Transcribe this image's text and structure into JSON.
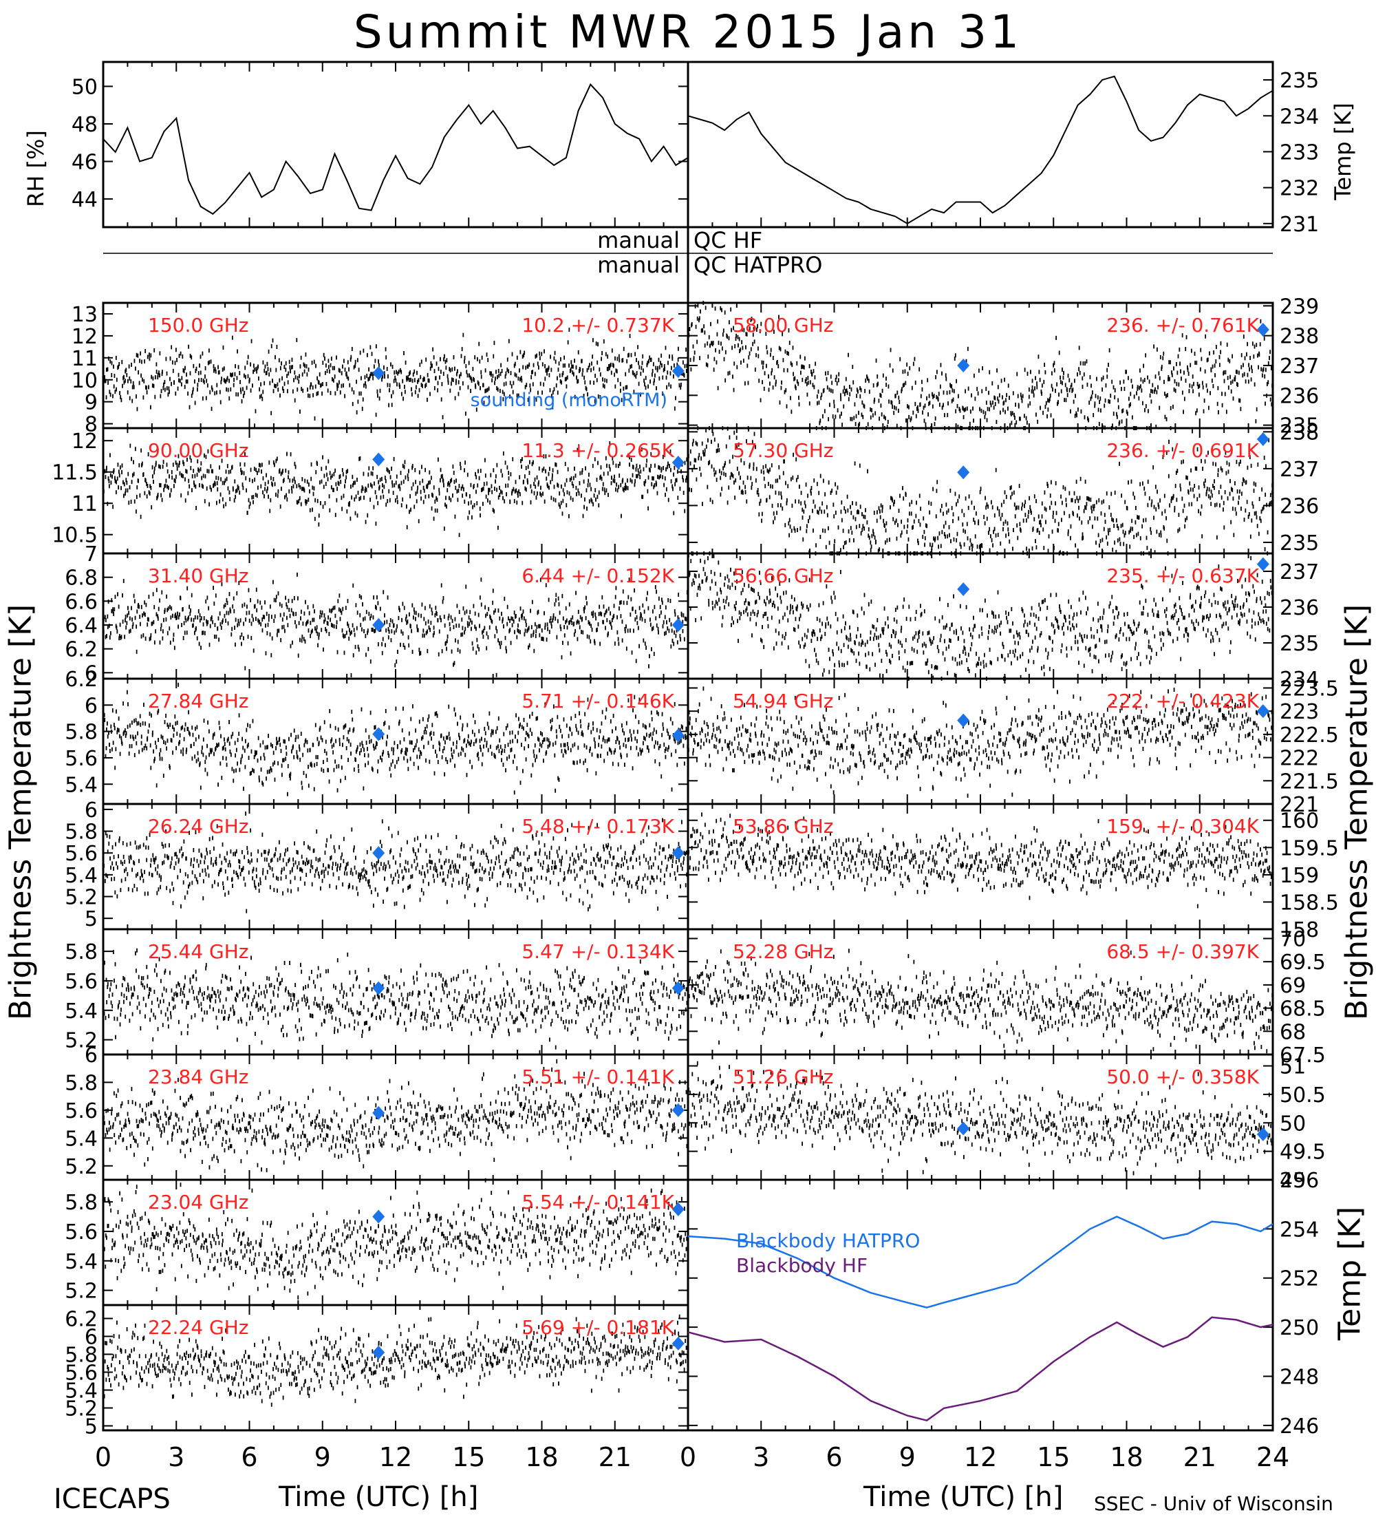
{
  "title": "Summit MWR 2015 Jan 31",
  "footer": {
    "left": "ICECAPS",
    "right": "SSEC - Univ of Wisconsin"
  },
  "colors": {
    "trace": "#000000",
    "label": "#ff2020",
    "marker": "#1a73e8",
    "hatpro": "#1a73e8",
    "hf": "#6a1b7a"
  },
  "axes": {
    "x_label": "Time (UTC) [h]",
    "x_ticks": [
      0,
      3,
      6,
      9,
      12,
      15,
      18,
      21,
      24
    ],
    "x_ticks_left": [
      0,
      3,
      6,
      9,
      12,
      15,
      18,
      21
    ],
    "y_label_left": "Brightness Temperature [K]",
    "y_label_right": "Brightness Temperature [K]",
    "rh_label": "RH [%]",
    "temp_label": "Temp [K]",
    "bb_temp_label": "Temp [K]"
  },
  "qc": {
    "hf": "manual QC HF",
    "hatpro": "manual QC HATPRO"
  },
  "chart_data": [
    {
      "type": "line",
      "id": "rh",
      "ylabel": "RH [%]",
      "ylim": [
        42.5,
        51.3
      ],
      "yticks": [
        44,
        46,
        48,
        50
      ],
      "x": [
        0,
        0.5,
        1,
        1.5,
        2,
        2.5,
        3,
        3.5,
        4,
        4.5,
        5,
        5.5,
        6,
        6.5,
        7,
        7.5,
        8,
        8.5,
        9,
        9.5,
        10,
        10.5,
        11,
        11.5,
        12,
        12.5,
        13,
        13.5,
        14,
        14.5,
        15,
        15.5,
        16,
        16.5,
        17,
        17.5,
        18,
        18.5,
        19,
        19.5,
        20,
        20.5,
        21,
        21.5,
        22,
        22.5,
        23,
        23.5,
        24
      ],
      "values": [
        47.2,
        46.5,
        47.8,
        46.0,
        46.2,
        47.6,
        48.3,
        45.0,
        43.6,
        43.2,
        43.8,
        44.6,
        45.4,
        44.1,
        44.5,
        46.0,
        45.2,
        44.3,
        44.5,
        46.4,
        45.0,
        43.5,
        43.4,
        45.0,
        46.3,
        45.1,
        44.8,
        45.7,
        47.3,
        48.2,
        49.0,
        48.0,
        48.7,
        47.8,
        46.7,
        46.8,
        46.3,
        45.8,
        46.2,
        48.7,
        50.1,
        49.4,
        48.0,
        47.5,
        47.2,
        46.0,
        46.8,
        45.8,
        46.2
      ]
    },
    {
      "type": "line",
      "id": "air_temp",
      "ylabel": "Temp [K]",
      "ylim": [
        230.9,
        235.5
      ],
      "yticks": [
        231,
        232,
        233,
        234,
        235
      ],
      "x": [
        12,
        12.5,
        13,
        13.5,
        14,
        14.5,
        15,
        15.5,
        16,
        16.5,
        17,
        17.5,
        18,
        18.5,
        19,
        19.5,
        20,
        20.5,
        21,
        21.5,
        22,
        22.5,
        23,
        23.5,
        24,
        0,
        0.5,
        1,
        1.5,
        2,
        2.5,
        3,
        3.5,
        4,
        4.5,
        5,
        5.5,
        6,
        6.5,
        7,
        7.5,
        8,
        8.5,
        9,
        9.5,
        10,
        10.5,
        11,
        11.5
      ],
      "values": [
        231.6,
        231.3,
        231.5,
        231.8,
        232.1,
        232.4,
        232.9,
        233.6,
        234.3,
        234.6,
        235.0,
        235.1,
        234.4,
        233.6,
        233.3,
        233.4,
        233.8,
        234.3,
        234.6,
        234.5,
        234.4,
        234.0,
        234.2,
        234.5,
        234.7,
        234.0,
        233.9,
        233.8,
        233.6,
        233.9,
        234.1,
        233.5,
        233.1,
        232.7,
        232.5,
        232.3,
        232.1,
        231.9,
        231.7,
        231.6,
        231.4,
        231.3,
        231.2,
        231.0,
        231.2,
        231.4,
        231.3,
        231.6,
        231.6
      ]
    },
    {
      "type": "scatter",
      "id": "hf_150",
      "label": "150.0 GHz",
      "stat": "10.2 +/- 0.737K",
      "ylim": [
        7.8,
        13.5
      ],
      "yticks": [
        8,
        9,
        10,
        11,
        12,
        13
      ],
      "baseline": [
        [
          0,
          10.2
        ],
        [
          12,
          10.0
        ],
        [
          24,
          10.5
        ]
      ],
      "noise": 0.737,
      "sounding": [
        [
          11.3,
          10.3
        ],
        [
          23.6,
          10.4
        ]
      ],
      "note": "sounding (monoRTM)"
    },
    {
      "type": "scatter",
      "id": "hf_90",
      "label": "90.00 GHz",
      "stat": "11.3 +/- 0.265K",
      "ylim": [
        10.2,
        12.2
      ],
      "yticks": [
        10.5,
        11.0,
        11.5,
        12.0
      ],
      "baseline": [
        [
          0,
          11.4
        ],
        [
          12,
          11.2
        ],
        [
          24,
          11.4
        ]
      ],
      "noise": 0.265,
      "sounding": [
        [
          11.3,
          11.7
        ],
        [
          23.6,
          11.65
        ]
      ]
    },
    {
      "type": "scatter",
      "id": "hat_3140",
      "label": "31.40 GHz",
      "stat": "6.44 +/- 0.152K",
      "ylim": [
        5.95,
        7.0
      ],
      "yticks": [
        6.0,
        6.2,
        6.4,
        6.6,
        6.8,
        7.0
      ],
      "baseline": [
        [
          0,
          6.45
        ],
        [
          12,
          6.4
        ],
        [
          24,
          6.45
        ]
      ],
      "noise": 0.152,
      "sounding": [
        [
          11.3,
          6.4
        ],
        [
          23.6,
          6.4
        ]
      ]
    },
    {
      "type": "scatter",
      "id": "hat_2784",
      "label": "27.84 GHz",
      "stat": "5.71 +/- 0.146K",
      "ylim": [
        5.25,
        6.2
      ],
      "yticks": [
        5.4,
        5.6,
        5.8,
        6.0,
        6.2
      ],
      "baseline": [
        [
          0,
          5.8
        ],
        [
          7,
          5.6
        ],
        [
          12,
          5.7
        ],
        [
          24,
          5.75
        ]
      ],
      "noise": 0.146,
      "sounding": [
        [
          11.3,
          5.78
        ],
        [
          23.6,
          5.77
        ]
      ]
    },
    {
      "type": "scatter",
      "id": "hat_2624",
      "label": "26.24 GHz",
      "stat": "5.48 +/- 0.173K",
      "ylim": [
        4.9,
        6.05
      ],
      "yticks": [
        5.0,
        5.2,
        5.4,
        5.6,
        5.8,
        6.0
      ],
      "baseline": [
        [
          0,
          5.5
        ],
        [
          12,
          5.45
        ],
        [
          24,
          5.5
        ]
      ],
      "noise": 0.173,
      "sounding": [
        [
          11.3,
          5.6
        ],
        [
          23.6,
          5.6
        ]
      ]
    },
    {
      "type": "scatter",
      "id": "hat_2544",
      "label": "25.44 GHz",
      "stat": "5.47 +/- 0.134K",
      "ylim": [
        5.1,
        5.95
      ],
      "yticks": [
        5.2,
        5.4,
        5.6,
        5.8
      ],
      "baseline": [
        [
          0,
          5.5
        ],
        [
          12,
          5.45
        ],
        [
          24,
          5.45
        ]
      ],
      "noise": 0.134,
      "sounding": [
        [
          11.3,
          5.55
        ],
        [
          23.6,
          5.55
        ]
      ]
    },
    {
      "type": "scatter",
      "id": "hat_2384",
      "label": "23.84 GHz",
      "stat": "5.51 +/- 0.141K",
      "ylim": [
        5.1,
        6.0
      ],
      "yticks": [
        5.2,
        5.4,
        5.6,
        5.8,
        6.0
      ],
      "baseline": [
        [
          0,
          5.5
        ],
        [
          9,
          5.45
        ],
        [
          18,
          5.6
        ],
        [
          24,
          5.55
        ]
      ],
      "noise": 0.141,
      "sounding": [
        [
          11.3,
          5.58
        ],
        [
          23.6,
          5.6
        ]
      ]
    },
    {
      "type": "scatter",
      "id": "hat_2304",
      "label": "23.04 GHz",
      "stat": "5.54 +/- 0.141K",
      "ylim": [
        5.1,
        5.95
      ],
      "yticks": [
        5.2,
        5.4,
        5.6,
        5.8
      ],
      "baseline": [
        [
          0,
          5.6
        ],
        [
          8,
          5.4
        ],
        [
          12,
          5.55
        ],
        [
          24,
          5.6
        ]
      ],
      "noise": 0.141,
      "sounding": [
        [
          11.3,
          5.7
        ],
        [
          23.6,
          5.75
        ]
      ]
    },
    {
      "type": "scatter",
      "id": "hat_2224",
      "label": "22.24 GHz",
      "stat": "5.69 +/- 0.181K",
      "ylim": [
        4.95,
        6.35
      ],
      "yticks": [
        5.0,
        5.2,
        5.4,
        5.6,
        5.8,
        6.0,
        6.2
      ],
      "baseline": [
        [
          0,
          5.75
        ],
        [
          6,
          5.6
        ],
        [
          12,
          5.75
        ],
        [
          24,
          5.85
        ]
      ],
      "noise": 0.181,
      "sounding": [
        [
          11.3,
          5.82
        ],
        [
          23.6,
          5.92
        ]
      ]
    },
    {
      "type": "scatter",
      "id": "hat_5800",
      "label": "58.00 GHz",
      "stat": "236. +/- 0.761K",
      "ylim": [
        234.9,
        239.1
      ],
      "yticks": [
        235,
        236,
        237,
        238,
        239
      ],
      "baseline": [
        [
          0,
          238.0
        ],
        [
          3,
          237.3
        ],
        [
          6,
          235.9
        ],
        [
          9,
          236.0
        ],
        [
          12,
          235.6
        ],
        [
          15,
          236.2
        ],
        [
          18,
          235.9
        ],
        [
          21,
          236.8
        ],
        [
          24,
          236.6
        ]
      ],
      "noise": 0.761,
      "sounding": [
        [
          11.3,
          237.0
        ],
        [
          23.6,
          238.2
        ]
      ]
    },
    {
      "type": "scatter",
      "id": "hat_5730",
      "label": "57.30 GHz",
      "stat": "236. +/- 0.691K",
      "ylim": [
        234.7,
        238.1
      ],
      "yticks": [
        235,
        236,
        237,
        238
      ],
      "baseline": [
        [
          0,
          237.5
        ],
        [
          3,
          236.7
        ],
        [
          6,
          235.5
        ],
        [
          9,
          235.4
        ],
        [
          12,
          235.4
        ],
        [
          15,
          235.8
        ],
        [
          18,
          235.5
        ],
        [
          21,
          236.4
        ],
        [
          24,
          236.3
        ]
      ],
      "noise": 0.691,
      "sounding": [
        [
          11.3,
          236.9
        ],
        [
          23.6,
          237.8
        ]
      ]
    },
    {
      "type": "scatter",
      "id": "hat_5666",
      "label": "56.66 GHz",
      "stat": "235. +/- 0.637K",
      "ylim": [
        234.0,
        237.5
      ],
      "yticks": [
        234,
        235,
        236,
        237
      ],
      "baseline": [
        [
          0,
          236.9
        ],
        [
          3,
          236.0
        ],
        [
          6,
          235.2
        ],
        [
          9,
          235.1
        ],
        [
          12,
          235.0
        ],
        [
          15,
          235.4
        ],
        [
          18,
          235.2
        ],
        [
          21,
          235.9
        ],
        [
          24,
          235.9
        ]
      ],
      "noise": 0.637,
      "sounding": [
        [
          11.3,
          236.5
        ],
        [
          23.6,
          237.2
        ]
      ]
    },
    {
      "type": "scatter",
      "id": "hat_5494",
      "label": "54.94 GHz",
      "stat": "222. +/- 0.423K",
      "ylim": [
        221.0,
        223.7
      ],
      "yticks": [
        221.0,
        221.5,
        222.0,
        222.5,
        223.0,
        223.5
      ],
      "baseline": [
        [
          0,
          222.6
        ],
        [
          6,
          222.2
        ],
        [
          12,
          222.2
        ],
        [
          18,
          222.6
        ],
        [
          24,
          222.7
        ]
      ],
      "noise": 0.423,
      "sounding": [
        [
          11.3,
          222.8
        ],
        [
          23.6,
          223.0
        ]
      ]
    },
    {
      "type": "scatter",
      "id": "hat_5386",
      "label": "53.86 GHz",
      "stat": "159. +/- 0.304K",
      "ylim": [
        158.0,
        160.3
      ],
      "yticks": [
        158.0,
        158.5,
        159.0,
        159.5,
        160.0
      ],
      "baseline": [
        [
          0,
          159.5
        ],
        [
          6,
          159.3
        ],
        [
          12,
          159.2
        ],
        [
          24,
          159.2
        ]
      ],
      "noise": 0.304,
      "sounding": []
    },
    {
      "type": "scatter",
      "id": "hat_5228",
      "label": "52.28 GHz",
      "stat": "68.5 +/- 0.397K",
      "ylim": [
        67.5,
        70.2
      ],
      "yticks": [
        67.5,
        68.0,
        68.5,
        69.0,
        69.5,
        70.0
      ],
      "baseline": [
        [
          0,
          68.9
        ],
        [
          6,
          68.8
        ],
        [
          12,
          68.6
        ],
        [
          18,
          68.5
        ],
        [
          24,
          68.3
        ]
      ],
      "noise": 0.397,
      "sounding": []
    },
    {
      "type": "scatter",
      "id": "hat_5126",
      "label": "51.26 GHz",
      "stat": "50.0 +/- 0.358K",
      "ylim": [
        49.0,
        51.2
      ],
      "yticks": [
        49.0,
        49.5,
        50.0,
        50.5,
        51.0
      ],
      "baseline": [
        [
          0,
          50.3
        ],
        [
          12,
          50.0
        ],
        [
          24,
          49.8
        ]
      ],
      "noise": 0.358,
      "sounding": [
        [
          11.3,
          49.9
        ],
        [
          23.6,
          49.8
        ]
      ]
    },
    {
      "type": "line",
      "id": "blackbody",
      "ylabel": "Temp [K]",
      "ylim": [
        245.8,
        256.0
      ],
      "yticks": [
        246,
        248,
        250,
        252,
        254,
        256
      ],
      "x": [
        0,
        1.5,
        3,
        4.5,
        6,
        7.5,
        9,
        9.8,
        10.5,
        12,
        13.5,
        15,
        16.5,
        17.6,
        18.5,
        19.5,
        20.5,
        21.5,
        22.5,
        23.5,
        24
      ],
      "series": [
        {
          "name": "Blackbody HATPRO",
          "values": [
            253.7,
            253.6,
            253.4,
            252.8,
            252.0,
            251.4,
            251.0,
            250.8,
            251.0,
            251.4,
            251.8,
            252.9,
            254.0,
            254.5,
            254.1,
            253.6,
            253.8,
            254.3,
            254.2,
            253.9,
            254.2
          ]
        },
        {
          "name": "Blackbody HF",
          "values": [
            249.8,
            249.4,
            249.5,
            248.8,
            248.0,
            247.0,
            246.4,
            246.2,
            246.7,
            247.0,
            247.4,
            248.6,
            249.6,
            250.2,
            249.7,
            249.2,
            249.6,
            250.4,
            250.3,
            250.0,
            250.1
          ]
        }
      ]
    }
  ]
}
